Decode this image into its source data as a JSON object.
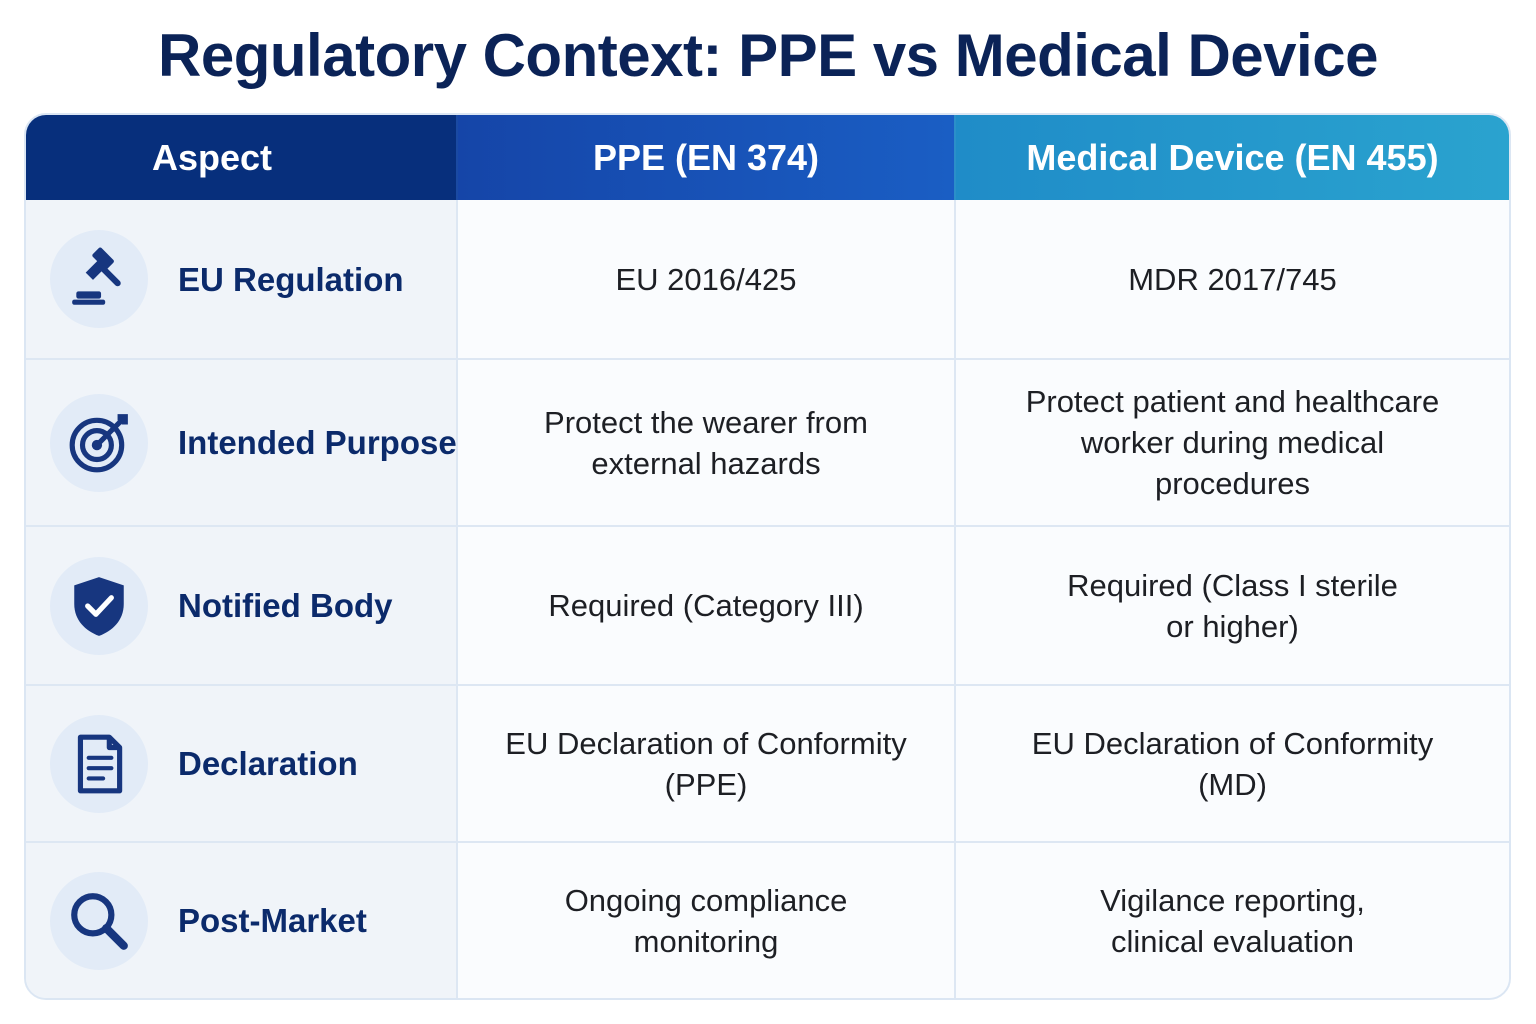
{
  "title": "Regulatory Context: PPE vs Medical Device",
  "header": {
    "aspect": "Aspect",
    "ppe": "PPE (EN 374)",
    "md": "Medical Device (EN 455)"
  },
  "colors": {
    "title": "#0b2357",
    "header_aspect": "#072f7c",
    "header_ppe": "#1a5ec4",
    "header_md": "#2aa3cf",
    "icon": "#17367f"
  },
  "rows": [
    {
      "icon": "gavel-icon",
      "aspect": "EU Regulation",
      "ppe": "EU 2016/425",
      "md": "MDR 2017/745"
    },
    {
      "icon": "target-icon",
      "aspect": "Intended Purpose",
      "ppe": "Protect the wearer from\nexternal hazards",
      "md": "Protect patient and healthcare\nworker during medical\nprocedures"
    },
    {
      "icon": "shield-check-icon",
      "aspect": "Notified Body",
      "ppe": "Required (Category III)",
      "md": "Required (Class I sterile\nor higher)"
    },
    {
      "icon": "document-icon",
      "aspect": "Declaration",
      "ppe": "EU Declaration of Conformity\n(PPE)",
      "md": "EU Declaration of Conformity\n(MD)"
    },
    {
      "icon": "search-icon",
      "aspect": "Post-Market",
      "ppe": "Ongoing compliance\nmonitoring",
      "md": "Vigilance reporting,\nclinical evaluation"
    }
  ]
}
